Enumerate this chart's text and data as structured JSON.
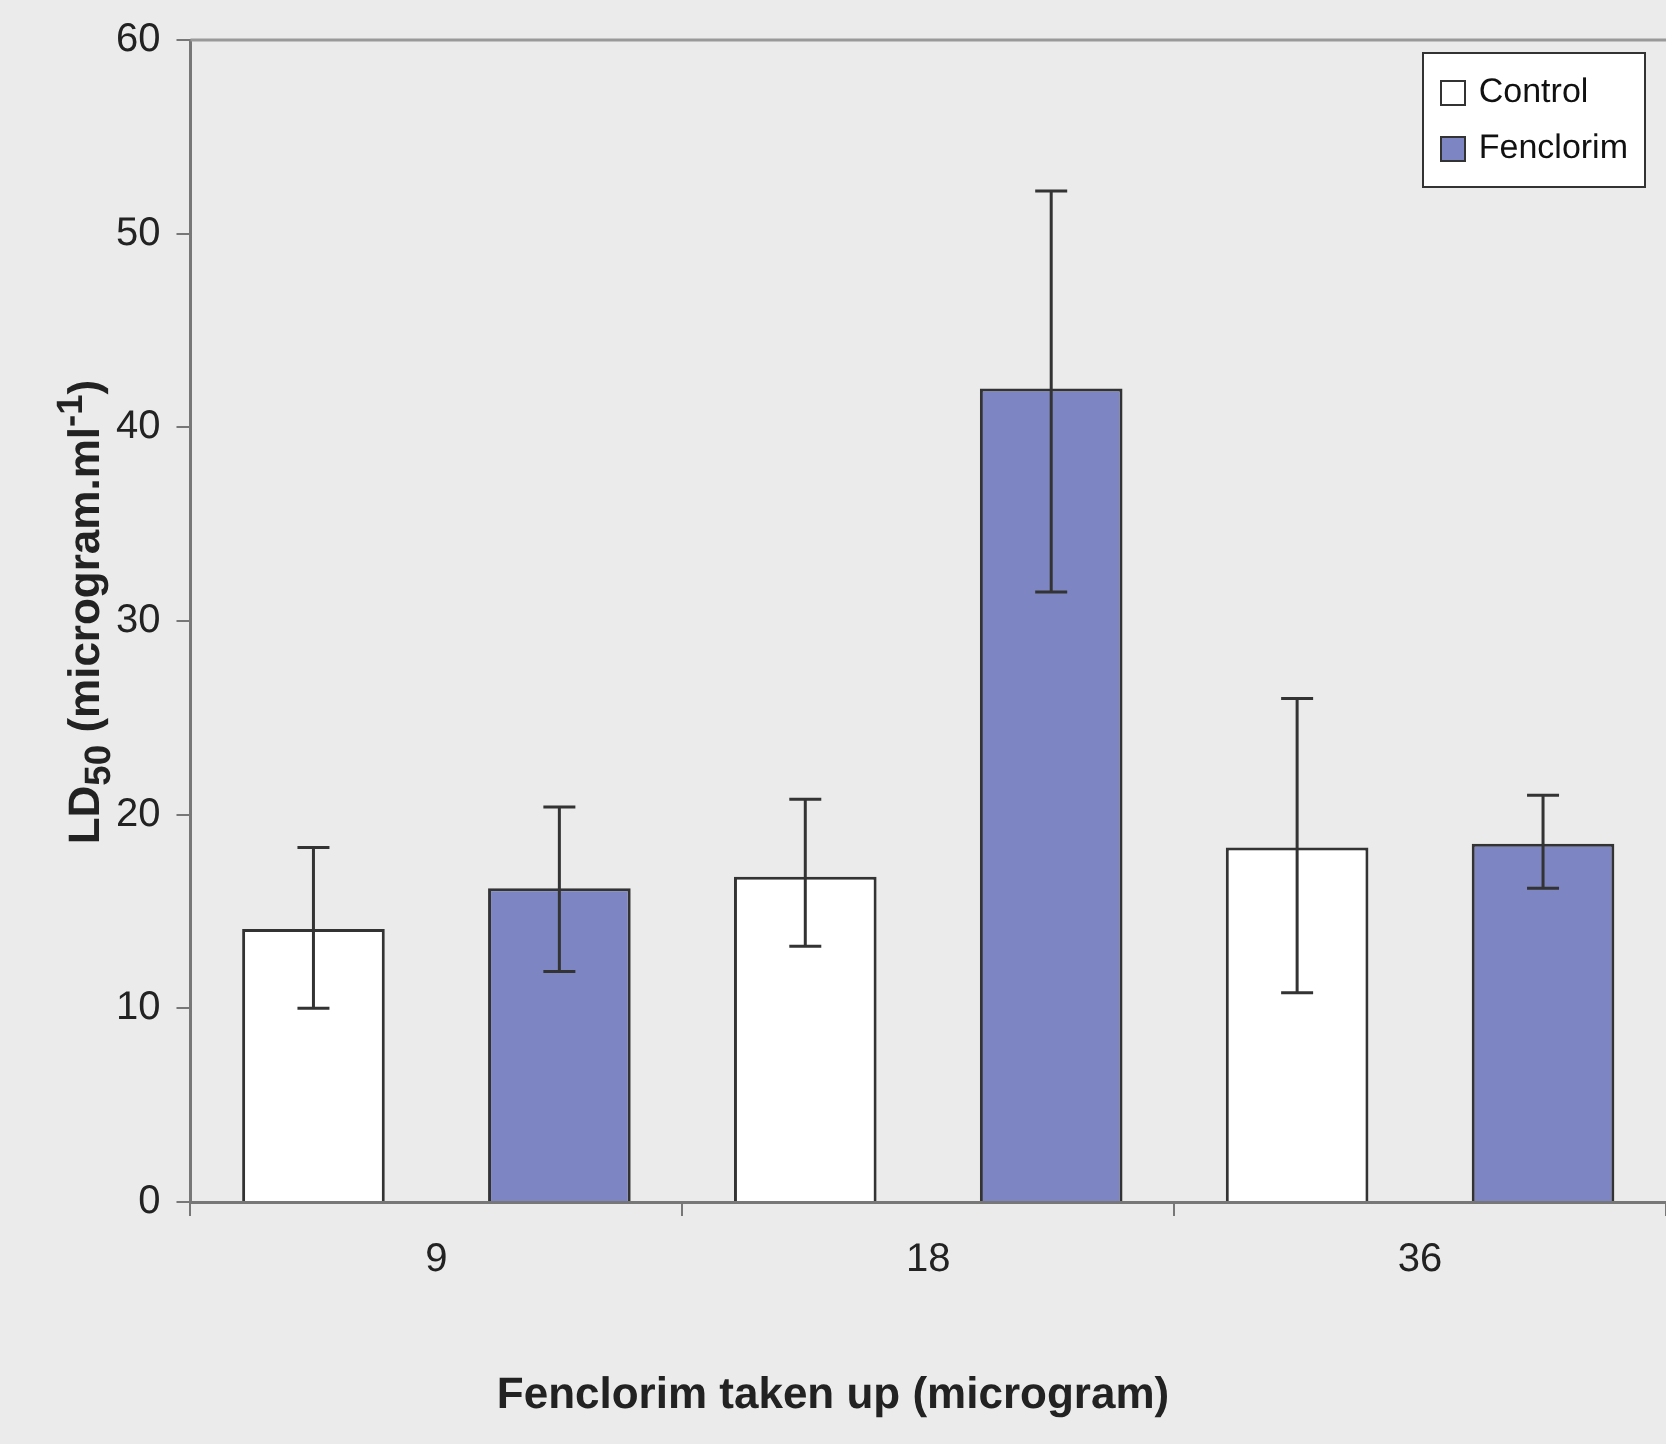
{
  "chart_data": {
    "type": "bar",
    "xlabel": "Fenclorim taken up (microgram)",
    "ylabel": "LD$_{50}$ (microgram.ml$^{-1}$)",
    "categories": [
      "9",
      "18",
      "36"
    ],
    "series": [
      {
        "name": "Control",
        "color": "#ffffff",
        "values": [
          14.1,
          16.8,
          18.3
        ],
        "errors": [
          [
            10.0,
            18.3
          ],
          [
            13.2,
            20.8
          ],
          [
            10.8,
            26.0
          ]
        ]
      },
      {
        "name": "Fenclorim",
        "color": "#7d86c2",
        "values": [
          16.2,
          42.0,
          18.5
        ],
        "errors": [
          [
            11.9,
            20.4
          ],
          [
            31.5,
            52.2
          ],
          [
            16.2,
            21.0
          ]
        ]
      }
    ],
    "ylim": [
      0,
      60
    ],
    "yticks": [
      0,
      10,
      20,
      30,
      40,
      50,
      60
    ],
    "grid": false,
    "legend": "top right"
  }
}
